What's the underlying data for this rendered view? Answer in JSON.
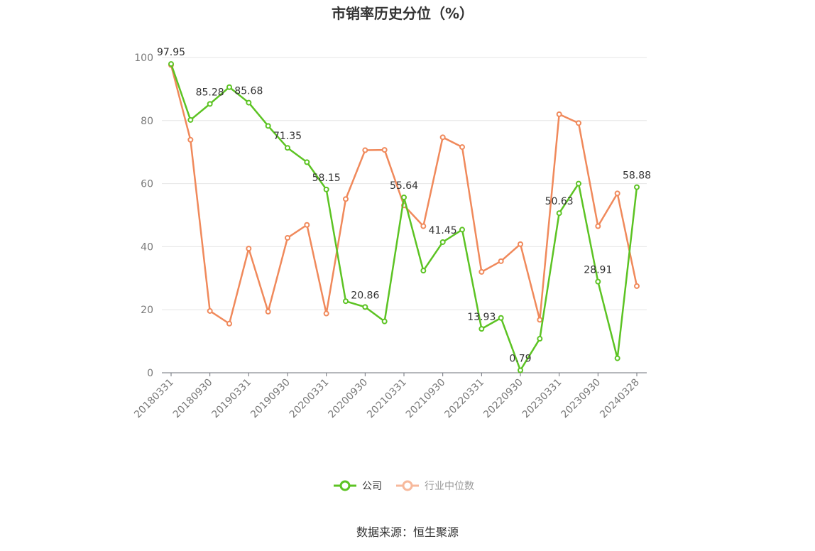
{
  "chart_data": {
    "type": "line",
    "title": "市销率历史分位（%）",
    "ylim": [
      0,
      100
    ],
    "yticks": [
      "0",
      "20",
      "40",
      "60",
      "80",
      "100"
    ],
    "xtick_labels": [
      "20180331",
      "20180930",
      "20190331",
      "20190930",
      "20200331",
      "20200930",
      "20210331",
      "20210930",
      "20220331",
      "20220930",
      "20230331",
      "20230930",
      "20240328"
    ],
    "x": [
      "20180331",
      "20180630",
      "20180930",
      "20181231",
      "20190331",
      "20190630",
      "20190930",
      "20191231",
      "20200331",
      "20200630",
      "20200930",
      "20201231",
      "20210331",
      "20210630",
      "20210930",
      "20211231",
      "20220331",
      "20220630",
      "20220930",
      "20221231",
      "20230331",
      "20230630",
      "20230930",
      "20231231",
      "20240328"
    ],
    "series": [
      {
        "name": "公司",
        "color": "#5cc323",
        "values": [
          97.95,
          80.2,
          85.28,
          90.6,
          85.68,
          78.3,
          71.35,
          66.8,
          58.15,
          22.7,
          20.86,
          16.3,
          55.64,
          32.4,
          41.45,
          45.4,
          13.93,
          17.4,
          0.79,
          10.8,
          50.63,
          60.0,
          28.91,
          4.6,
          58.88
        ],
        "labels": [
          "97.95",
          "",
          "85.28",
          "",
          "85.68",
          "",
          "71.35",
          "",
          "58.15",
          "",
          "20.86",
          "",
          "55.64",
          "",
          "41.45",
          "",
          "13.93",
          "",
          "0.79",
          "",
          "50.63",
          "",
          "28.91",
          "",
          "58.88"
        ]
      },
      {
        "name": "行业中位数",
        "color": "#f0895b",
        "values": [
          97.6,
          73.9,
          19.6,
          15.6,
          39.4,
          19.4,
          42.8,
          46.9,
          18.8,
          55.1,
          70.6,
          70.7,
          53.1,
          46.5,
          74.7,
          71.6,
          32.0,
          35.4,
          40.8,
          16.8,
          82.0,
          79.2,
          46.5,
          56.9,
          27.5
        ]
      }
    ],
    "grid": true,
    "legend_position": "bottom-center",
    "source": "数据来源：恒生聚源"
  }
}
